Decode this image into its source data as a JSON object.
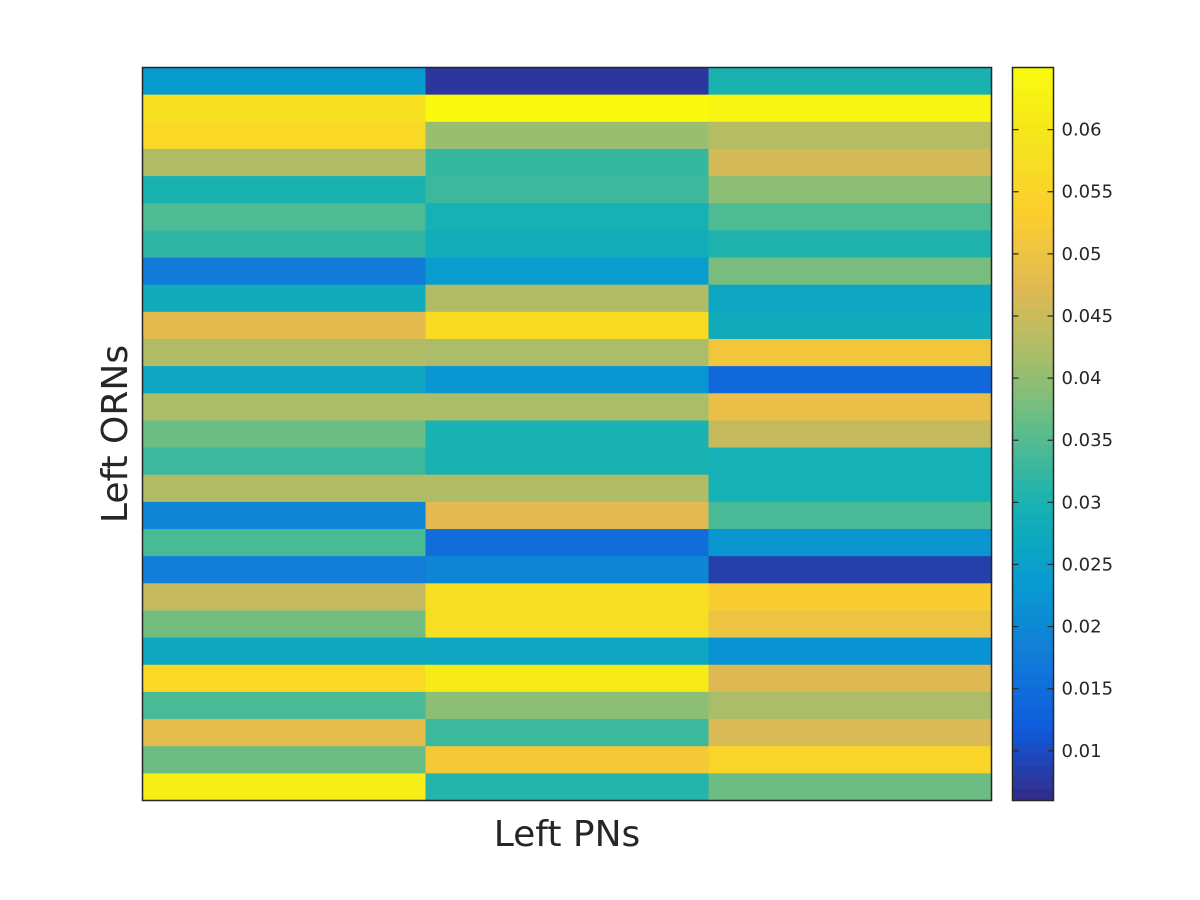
{
  "chart_data": {
    "type": "heatmap",
    "xlabel": "Left PNs",
    "ylabel": "Left ORNs",
    "n_rows": 27,
    "n_cols": 3,
    "values": [
      [
        0.0235,
        0.0075,
        0.03
      ],
      [
        0.058,
        0.0645,
        0.0635
      ],
      [
        0.056,
        0.0405,
        0.043
      ],
      [
        0.0425,
        0.0325,
        0.046
      ],
      [
        0.03,
        0.033,
        0.0395
      ],
      [
        0.0345,
        0.0295,
        0.0345
      ],
      [
        0.032,
        0.0285,
        0.0305
      ],
      [
        0.0175,
        0.024,
        0.038
      ],
      [
        0.028,
        0.0425,
        0.0265
      ],
      [
        0.048,
        0.057,
        0.028
      ],
      [
        0.0425,
        0.042,
        0.051
      ],
      [
        0.0265,
        0.0225,
        0.014
      ],
      [
        0.042,
        0.042,
        0.049
      ],
      [
        0.037,
        0.03,
        0.0445
      ],
      [
        0.033,
        0.03,
        0.0295
      ],
      [
        0.0425,
        0.0425,
        0.0295
      ],
      [
        0.0195,
        0.0475,
        0.034
      ],
      [
        0.034,
        0.015,
        0.0225
      ],
      [
        0.018,
        0.0195,
        0.0085
      ],
      [
        0.0445,
        0.0575,
        0.0525
      ],
      [
        0.0375,
        0.0575,
        0.05
      ],
      [
        0.027,
        0.0265,
        0.022
      ],
      [
        0.056,
        0.061,
        0.047
      ],
      [
        0.034,
        0.0395,
        0.042
      ],
      [
        0.0485,
        0.033,
        0.0465
      ],
      [
        0.037,
        0.0515,
        0.055
      ],
      [
        0.0615,
        0.031,
        0.037
      ]
    ],
    "colorbar": {
      "min": 0.006,
      "max": 0.065,
      "ticks": [
        {
          "value": 0.01,
          "label": "0.01"
        },
        {
          "value": 0.015,
          "label": "0.015"
        },
        {
          "value": 0.02,
          "label": "0.02"
        },
        {
          "value": 0.025,
          "label": "0.025"
        },
        {
          "value": 0.03,
          "label": "0.03"
        },
        {
          "value": 0.035,
          "label": "0.035"
        },
        {
          "value": 0.04,
          "label": "0.04"
        },
        {
          "value": 0.045,
          "label": "0.045"
        },
        {
          "value": 0.05,
          "label": "0.05"
        },
        {
          "value": 0.055,
          "label": "0.055"
        },
        {
          "value": 0.06,
          "label": "0.06"
        }
      ]
    },
    "colormap": "parula",
    "grid": false
  }
}
